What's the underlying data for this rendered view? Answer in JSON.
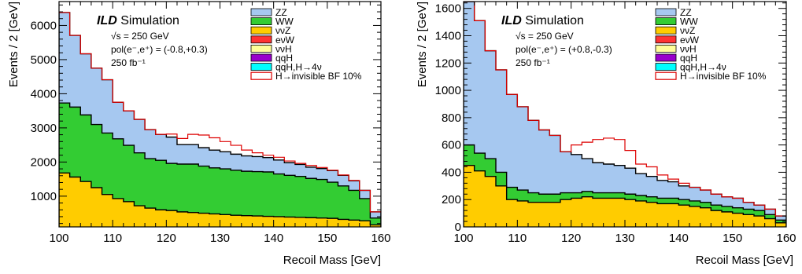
{
  "chart_data": [
    {
      "type": "area",
      "x_edges": [
        100,
        102,
        104,
        106,
        108,
        110,
        112,
        114,
        116,
        118,
        120,
        122,
        124,
        126,
        128,
        130,
        132,
        134,
        136,
        138,
        140,
        142,
        144,
        146,
        148,
        150,
        152,
        154,
        156,
        158,
        160
      ],
      "xlim": [
        100,
        160
      ],
      "ylim": [
        100,
        6700
      ],
      "xticks": [
        100,
        110,
        120,
        130,
        140,
        150,
        160
      ],
      "yticks": [
        1000,
        2000,
        3000,
        4000,
        5000,
        6000
      ],
      "xlabel": "Recoil Mass [GeV]",
      "ylabel": "Events / 2 [GeV]",
      "annotation": {
        "experiment": "ILD",
        "label": "Simulation",
        "energy": "√s = 250 GeV",
        "polarization": "pol(e⁻,e⁺) = (-0.8,+0.3)",
        "luminosity": "250 fb⁻¹"
      },
      "stack_bottom_to_top": [
        "ννZ",
        "WW",
        "ZZ"
      ],
      "series": [
        {
          "name": "ννZ",
          "values": [
            1680,
            1560,
            1430,
            1250,
            1050,
            930,
            840,
            720,
            650,
            600,
            580,
            540,
            520,
            500,
            480,
            460,
            440,
            430,
            420,
            410,
            400,
            390,
            380,
            370,
            360,
            350,
            320,
            300,
            280,
            160
          ]
        },
        {
          "name": "WW",
          "values": [
            2050,
            2050,
            1950,
            1850,
            1800,
            1750,
            1650,
            1550,
            1450,
            1450,
            1380,
            1400,
            1420,
            1380,
            1350,
            1340,
            1320,
            1300,
            1300,
            1300,
            1250,
            1220,
            1200,
            1150,
            1130,
            1060,
            980,
            870,
            650,
            200
          ]
        },
        {
          "name": "ZZ",
          "values": [
            2650,
            2100,
            1790,
            1650,
            1560,
            1070,
            1010,
            980,
            850,
            760,
            770,
            570,
            570,
            540,
            520,
            500,
            470,
            450,
            440,
            420,
            410,
            370,
            350,
            330,
            320,
            340,
            310,
            280,
            240,
            180
          ]
        },
        {
          "name": "H→invisible BF 10%",
          "values": [
            6380,
            5710,
            5170,
            4750,
            4410,
            3750,
            3500,
            3250,
            2950,
            2810,
            2820,
            2690,
            2810,
            2790,
            2710,
            2600,
            2490,
            2350,
            2270,
            2200,
            2140,
            2030,
            1960,
            1900,
            1840,
            1760,
            1620,
            1460,
            1170,
            540
          ]
        }
      ],
      "legend": {
        "position": "top-right",
        "entries": [
          {
            "label": "ZZ",
            "color": "#a6c8f0",
            "style": "fill"
          },
          {
            "label": "WW",
            "color": "#33cc33",
            "style": "fill"
          },
          {
            "label": "ννZ",
            "color": "#ffcc00",
            "style": "fill"
          },
          {
            "label": "eνW",
            "color": "#ff3333",
            "style": "fill"
          },
          {
            "label": "ννH",
            "color": "#ffff99",
            "style": "fill"
          },
          {
            "label": "qqH",
            "color": "#9900cc",
            "style": "fill"
          },
          {
            "label": "qqH,H→4ν",
            "color": "#00ffff",
            "style": "fill"
          },
          {
            "label": "H→invisible BF 10%",
            "color": "#dd0000",
            "style": "line"
          }
        ]
      }
    },
    {
      "type": "area",
      "x_edges": [
        100,
        102,
        104,
        106,
        108,
        110,
        112,
        114,
        116,
        118,
        120,
        122,
        124,
        126,
        128,
        130,
        132,
        134,
        136,
        138,
        140,
        142,
        144,
        146,
        148,
        150,
        152,
        154,
        156,
        158,
        160
      ],
      "xlim": [
        100,
        160
      ],
      "ylim": [
        0,
        1650
      ],
      "xticks": [
        100,
        110,
        120,
        130,
        140,
        150,
        160
      ],
      "yticks": [
        0,
        200,
        400,
        600,
        800,
        1000,
        1200,
        1400,
        1600
      ],
      "xlabel": "Recoil Mass [GeV]",
      "ylabel": "Events / 2 [GeV]",
      "annotation": {
        "experiment": "ILD",
        "label": "Simulation",
        "energy": "√s = 250 GeV",
        "polarization": "pol(e⁻,e⁺) = (+0.8,-0.3)",
        "luminosity": "250 fb⁻¹"
      },
      "stack_bottom_to_top": [
        "ννZ",
        "WW",
        "ZZ"
      ],
      "series": [
        {
          "name": "ννZ",
          "values": [
            450,
            410,
            370,
            300,
            200,
            190,
            180,
            180,
            180,
            200,
            210,
            220,
            210,
            210,
            210,
            200,
            190,
            180,
            170,
            170,
            160,
            150,
            140,
            120,
            110,
            100,
            90,
            80,
            60,
            30
          ]
        },
        {
          "name": "WW",
          "values": [
            150,
            130,
            130,
            100,
            90,
            80,
            70,
            60,
            60,
            50,
            40,
            40,
            40,
            40,
            40,
            40,
            40,
            40,
            40,
            40,
            40,
            40,
            40,
            40,
            40,
            40,
            40,
            40,
            30,
            20
          ]
        },
        {
          "name": "ZZ",
          "values": [
            1400,
            970,
            790,
            750,
            680,
            610,
            530,
            470,
            430,
            300,
            280,
            240,
            220,
            210,
            200,
            190,
            160,
            150,
            130,
            120,
            100,
            100,
            90,
            80,
            70,
            70,
            50,
            40,
            40,
            30
          ]
        },
        {
          "name": "H→invisible BF 10%",
          "values": [
            2000,
            1510,
            1290,
            1150,
            970,
            880,
            780,
            710,
            670,
            550,
            600,
            620,
            640,
            650,
            640,
            560,
            460,
            440,
            380,
            350,
            320,
            290,
            270,
            240,
            220,
            210,
            180,
            160,
            130,
            80
          ]
        }
      ],
      "legend": {
        "position": "top-right",
        "entries": [
          {
            "label": "ZZ",
            "color": "#a6c8f0",
            "style": "fill"
          },
          {
            "label": "WW",
            "color": "#33cc33",
            "style": "fill"
          },
          {
            "label": "ννZ",
            "color": "#ffcc00",
            "style": "fill"
          },
          {
            "label": "eνW",
            "color": "#ff3333",
            "style": "fill"
          },
          {
            "label": "ννH",
            "color": "#ffff99",
            "style": "fill"
          },
          {
            "label": "qqH",
            "color": "#9900cc",
            "style": "fill"
          },
          {
            "label": "qqH,H→4ν",
            "color": "#00ffff",
            "style": "fill"
          },
          {
            "label": "H→invisible BF 10%",
            "color": "#dd0000",
            "style": "line"
          }
        ]
      }
    }
  ]
}
